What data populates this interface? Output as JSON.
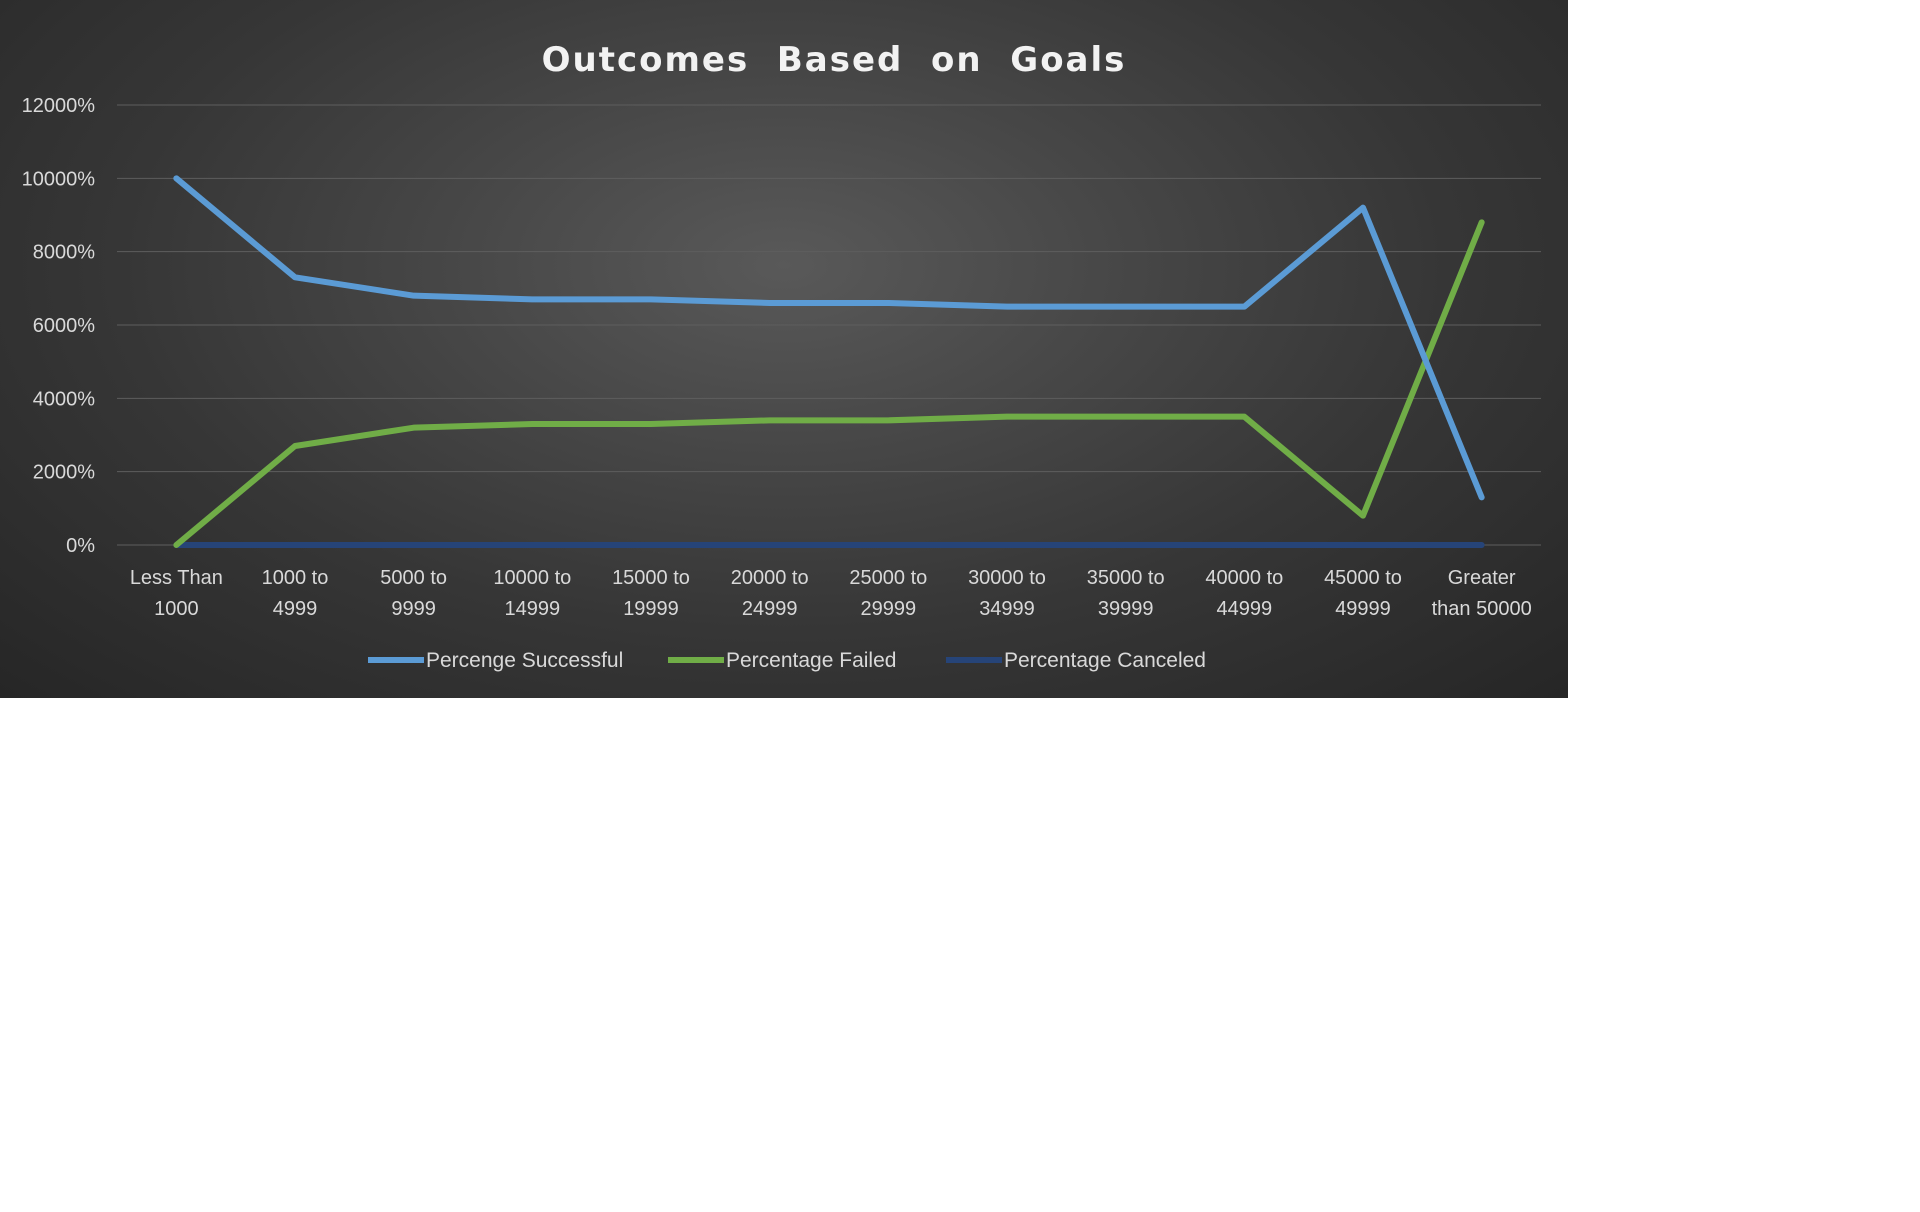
{
  "chart_data": {
    "type": "line",
    "title": "Outcomes  Based  on  Goals",
    "xlabel": "",
    "ylabel": "",
    "ylim": [
      0,
      12000
    ],
    "y_ticks": [
      0,
      2000,
      4000,
      6000,
      8000,
      10000,
      12000
    ],
    "y_tick_labels": [
      "0%",
      "2000%",
      "4000%",
      "6000%",
      "8000%",
      "10000%",
      "12000%"
    ],
    "grid": true,
    "legend_position": "bottom",
    "categories": [
      [
        "Less Than",
        "1000"
      ],
      [
        "1000 to",
        "4999"
      ],
      [
        "5000 to",
        "9999"
      ],
      [
        "10000 to",
        "14999"
      ],
      [
        "15000 to",
        "19999"
      ],
      [
        "20000 to",
        "24999"
      ],
      [
        "25000 to",
        "29999"
      ],
      [
        "30000 to",
        "34999"
      ],
      [
        "35000 to",
        "39999"
      ],
      [
        "40000 to",
        "44999"
      ],
      [
        "45000 to",
        "49999"
      ],
      [
        "Greater",
        "than 50000"
      ]
    ],
    "series": [
      {
        "name": "Percenge Successful",
        "color": "#5b9bd5",
        "values": [
          10000,
          7300,
          6800,
          6700,
          6700,
          6600,
          6600,
          6500,
          6500,
          6500,
          9200,
          1300
        ]
      },
      {
        "name": "Percentage Failed",
        "color": "#70ad47",
        "values": [
          0,
          2700,
          3200,
          3300,
          3300,
          3400,
          3400,
          3500,
          3500,
          3500,
          800,
          8800
        ]
      },
      {
        "name": "Percentage Canceled",
        "color": "#264478",
        "values": [
          0,
          0,
          0,
          0,
          0,
          0,
          0,
          0,
          0,
          0,
          0,
          0
        ]
      }
    ]
  }
}
